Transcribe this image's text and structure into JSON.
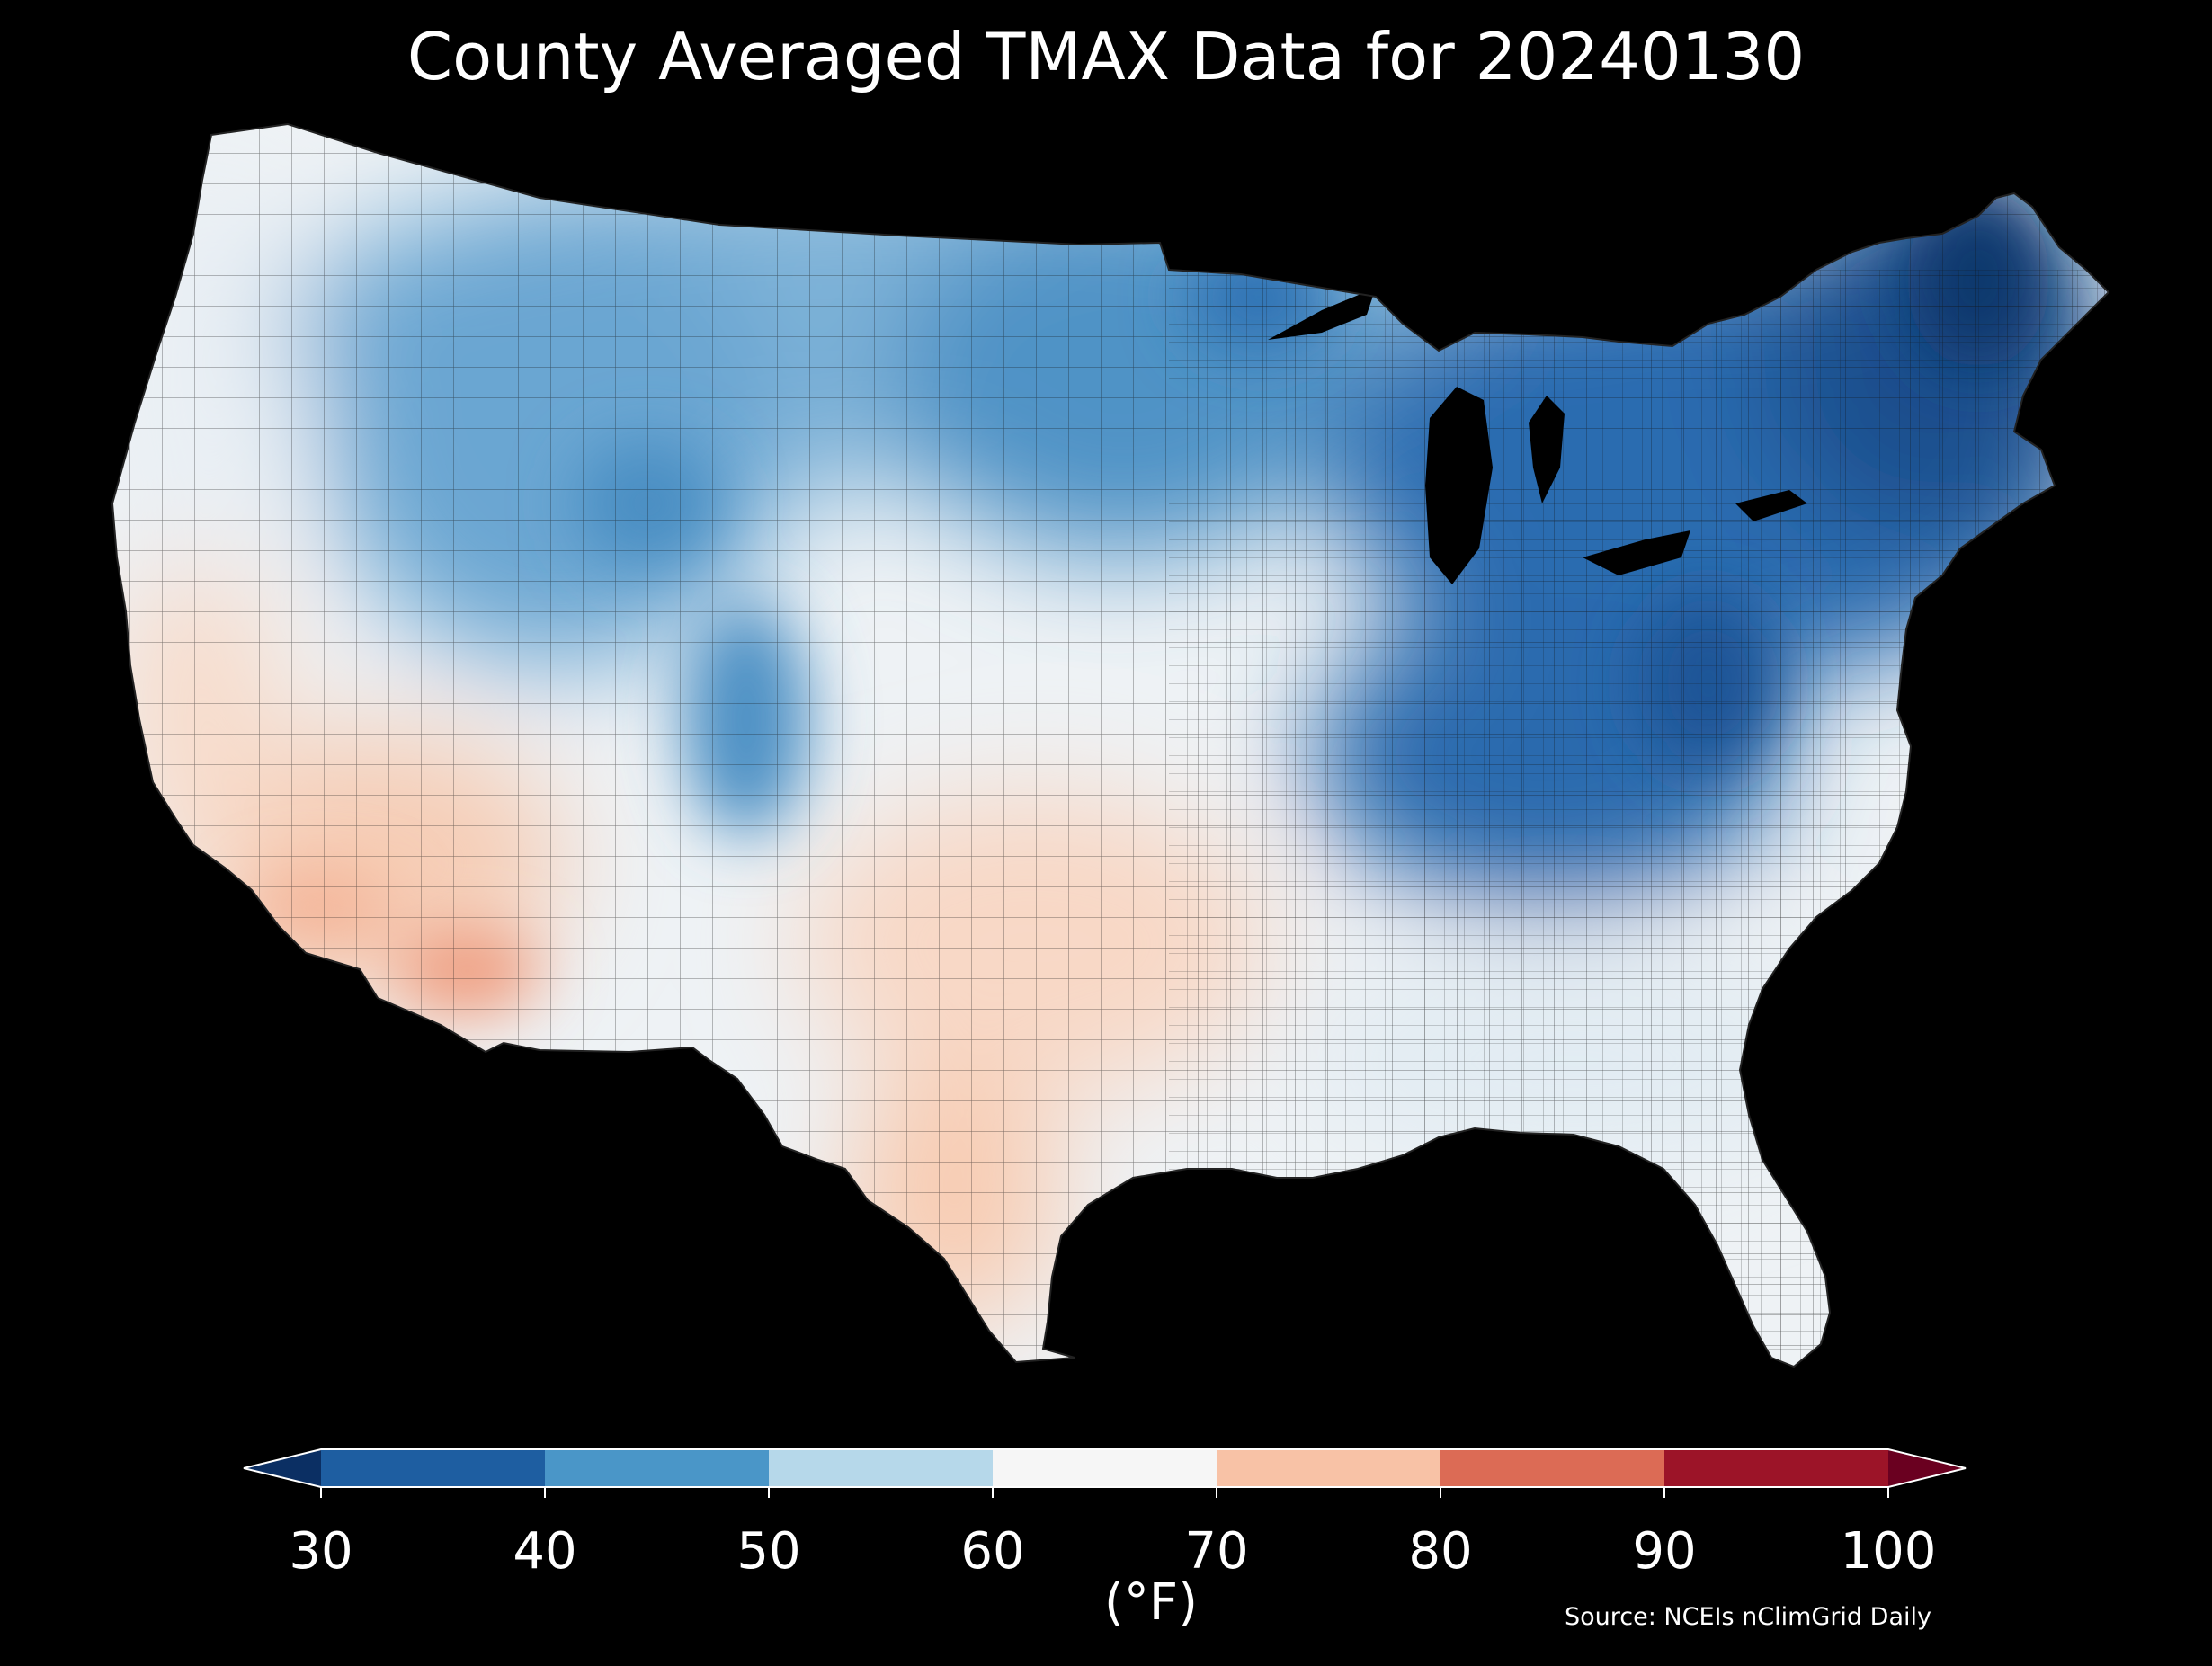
{
  "title": "County Averaged TMAX Data for 20240130",
  "colorbar": {
    "unit_label": "(°F)",
    "ticks": [
      "30",
      "40",
      "50",
      "60",
      "70",
      "80",
      "90",
      "100"
    ],
    "bins": [
      {
        "from": 30,
        "to": 40,
        "color": "#1e5ea1"
      },
      {
        "from": 40,
        "to": 50,
        "color": "#4a96c8"
      },
      {
        "from": 50,
        "to": 60,
        "color": "#b6d8ea"
      },
      {
        "from": 60,
        "to": 70,
        "color": "#f6f6f6"
      },
      {
        "from": 70,
        "to": 80,
        "color": "#f8c2a6"
      },
      {
        "from": 80,
        "to": 90,
        "color": "#dc6b55"
      },
      {
        "from": 90,
        "to": 100,
        "color": "#9c1428"
      }
    ],
    "under_color": "#0b2f63",
    "over_color": "#6a0020"
  },
  "source": "Source: NCEIs nClimGrid Daily",
  "background": "#000000"
}
